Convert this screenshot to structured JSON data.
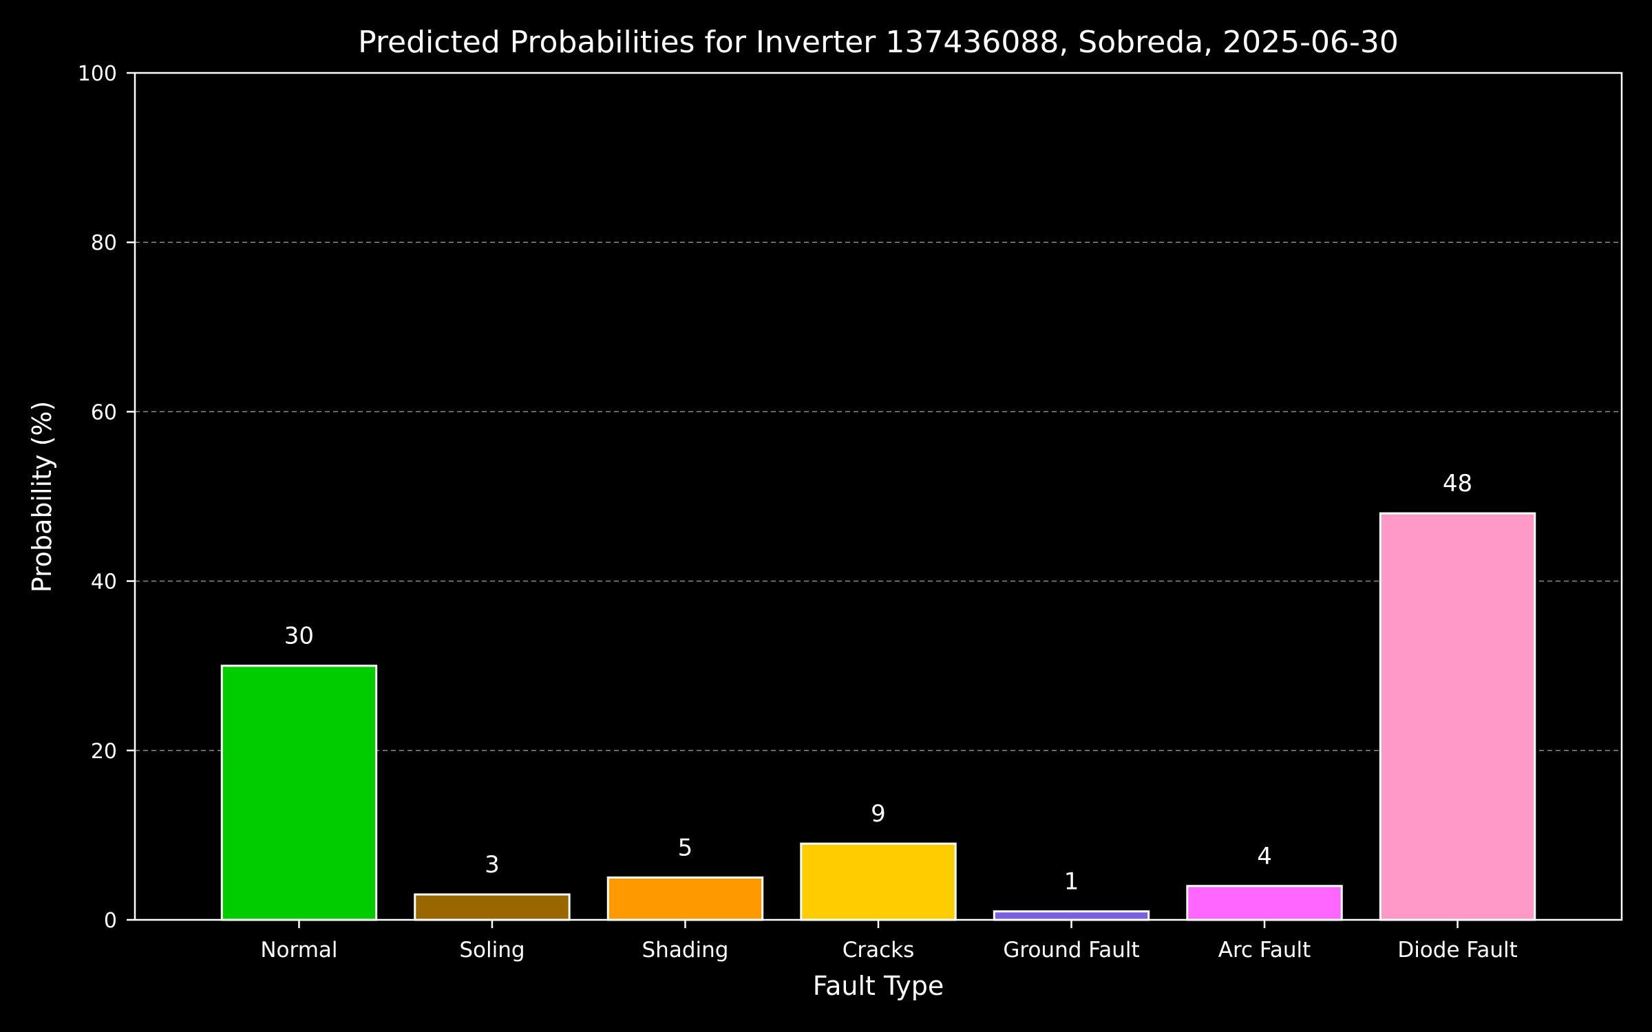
{
  "chart_data": {
    "type": "bar",
    "title": "Predicted Probabilities for Inverter 137436088, Sobreda, 2025-06-30",
    "xlabel": "Fault Type",
    "ylabel": "Probability (%)",
    "ylim": [
      0,
      100
    ],
    "yticks": [
      0,
      20,
      40,
      60,
      80,
      100
    ],
    "grid": "y-dashed",
    "categories": [
      "Normal",
      "Soling",
      "Shading",
      "Cracks",
      "Ground Fault",
      "Arc Fault",
      "Diode Fault"
    ],
    "values": [
      30,
      3,
      5,
      9,
      1,
      4,
      48
    ],
    "data_labels": [
      "30",
      "3",
      "5",
      "9",
      "1",
      "4",
      "48"
    ],
    "colors": [
      "#00cc00",
      "#996600",
      "#ff9900",
      "#ffcc00",
      "#7a5fe0",
      "#ff66ff",
      "#ff99c8"
    ],
    "edge_color": "#ffffff",
    "background": "#000000"
  }
}
